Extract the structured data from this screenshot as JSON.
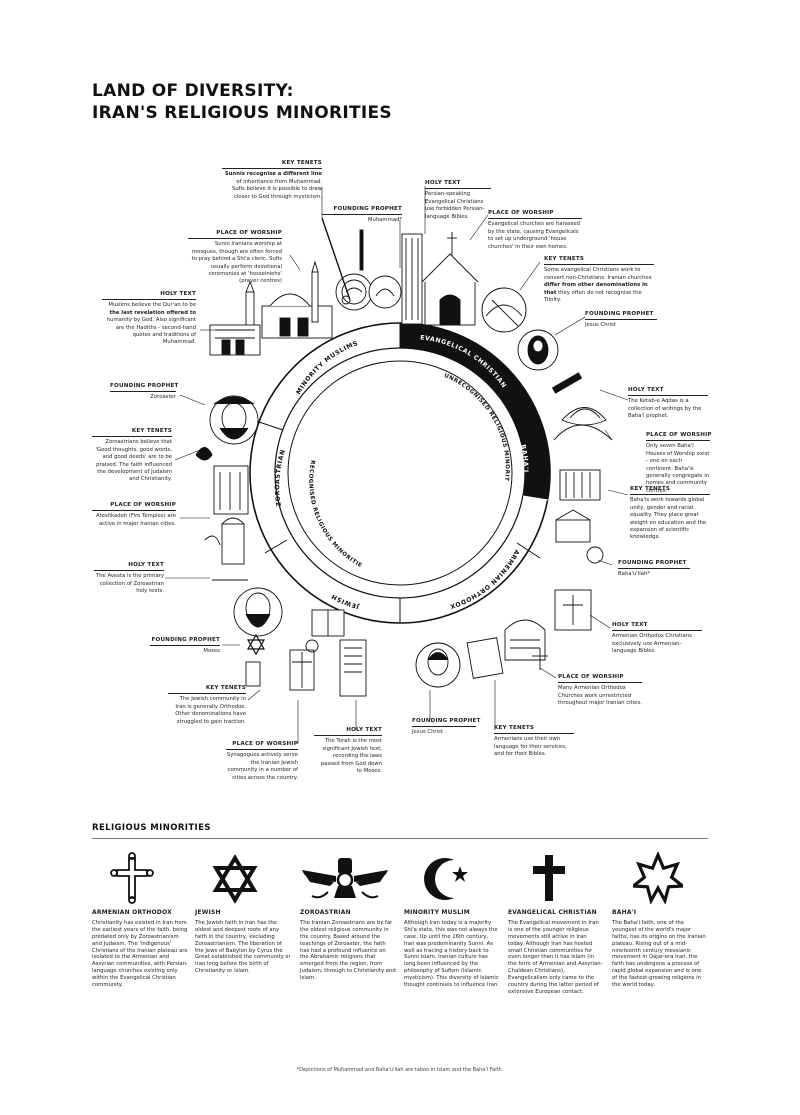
{
  "title": {
    "line1": "LAND OF DIVERSITY:",
    "line2": "IRAN'S RELIGIOUS MINORITIES"
  },
  "ring": {
    "outer_labels": [
      "MINORITY MUSLIMS",
      "EVANGELICAL CHRISTIAN",
      "BAHA'I",
      "ARMENIAN ORTHODOX",
      "JEWISH",
      "ZOROASTRIAN"
    ],
    "inner_left": "RECOGNISED RELIGIOUS MINORITIES",
    "inner_right": "UNRECOGNISED RELIGIOUS MINORITIES"
  },
  "callouts": {
    "muslim_key_tenets": {
      "heading": "KEY TENETS",
      "bold": "Sunnis recognise a different line",
      "text": "of inheritance from Muhammad. Sufis believe it is possible to draw closer to God through mysticism."
    },
    "muslim_founding_prophet": {
      "heading": "FOUNDING PROPHET",
      "text": "Muhammad*"
    },
    "muslim_place_of_worship": {
      "heading": "PLACE OF WORSHIP",
      "text": "Sunni Iranians worship at mosques, though are often forced to pray behind a Shi'a cleric. Sufis usually perform devotional ceremonies at 'hosseiniehs' (prayer centres)"
    },
    "muslim_holy_text": {
      "heading": "HOLY TEXT",
      "pre": "Muslims believe the Qur'an to be",
      "bold": "the last revelation offered to",
      "post": "humanity by God. Also significant are the Hadiths - second-hand quotes and traditions of Muhammad."
    },
    "zoro_founding_prophet": {
      "heading": "FOUNDING PROPHET",
      "text": "Zoroaster"
    },
    "zoro_key_tenets": {
      "heading": "KEY TENETS",
      "text": "Zoroastrians believe that 'Good thoughts, good words, and good deeds' are to be praised. The faith influenced the development of Judaism and Christianity."
    },
    "zoro_place_of_worship": {
      "heading": "PLACE OF WORSHIP",
      "text": "Ateshkadeh (Fire Temples) are active in major Iranian cities."
    },
    "zoro_holy_text": {
      "heading": "HOLY TEXT",
      "text": "The Avesta is the primary collection of Zoroastrian holy texts."
    },
    "jew_founding_prophet": {
      "heading": "FOUNDING PROPHET",
      "text": "Moses"
    },
    "jew_key_tenets": {
      "heading": "KEY TENETS",
      "text": "The Jewish community in Iran is generally Orthodox. Other denominations have struggled to gain traction."
    },
    "jew_place_of_worship": {
      "heading": "PLACE OF WORSHIP",
      "text": "Synagogues actively serve the Iranian Jewish community in a number of cities across the country."
    },
    "jew_holy_text": {
      "heading": "HOLY TEXT",
      "text": "The Torah is the most significant Jewish text, recording the laws passed from God down to Moses."
    },
    "arm_founding_prophet": {
      "heading": "FOUNDING PROPHET",
      "text": "Jesus Christ"
    },
    "arm_key_tenets": {
      "heading": "KEY TENETS",
      "text": "Armenians use their own language for their services, and for their Bibles."
    },
    "arm_place_of_worship": {
      "heading": "PLACE OF WORSHIP",
      "text": "Many Armenian Orthodox Churches work unrestricted throughout major Iranian cities."
    },
    "arm_holy_text": {
      "heading": "HOLY TEXT",
      "text": "Armenian Orthodox Christians exclusively use Armenian-language Bibles."
    },
    "bahai_founding_prophet": {
      "heading": "FOUNDING PROPHET",
      "text": "Baha'u'llah*"
    },
    "bahai_key_tenets": {
      "heading": "KEY TENETS",
      "text": "Baha'is work towards global unity, gender and racial equality. They place great weight on education and the expansion of scientific knowledge."
    },
    "bahai_place_of_worship": {
      "heading": "PLACE OF WORSHIP",
      "text": "Only seven Baha'i Houses of Worship exist - one on each continent. Baha'is generally congregate in homes and community centres."
    },
    "bahai_holy_text": {
      "heading": "HOLY TEXT",
      "text": "The Ketab-e Aqdas is a collection of writings by the Baha'i prophet."
    },
    "evan_founding_prophet": {
      "heading": "FOUNDING PROPHET",
      "text": "Jesus Christ"
    },
    "evan_key_tenets": {
      "heading": "KEY TENETS",
      "pre": "Some evangelical Christians work to convert non-Christians. Iranian churches",
      "bold": "differ from other denominations in that",
      "post": "they often do not recognise the Trinity."
    },
    "evan_place_of_worship": {
      "heading": "PLACE OF WORSHIP",
      "text": "Evangelical churches are harassed by the state, causing Evangelicals to set up underground 'house churches' in their own homes."
    },
    "evan_holy_text": {
      "heading": "HOLY TEXT",
      "text": "Persian-speaking Evangelical Christians use forbidden Persian-language Bibles."
    }
  },
  "section": {
    "title": "RELIGIOUS MINORITIES"
  },
  "minorities": [
    {
      "name": "ARMENIAN ORTHODOX",
      "icon": "cross-bottony-icon",
      "text": "Christianity has existed in Iran from the earliest years of the faith, being predated only by Zoroastrianism and Judaism. The 'indigenous' Christians of the Iranian plateau are isolated to the Armenian and Assyrian communities, with Persian-language churches existing only within the Evangelical Christian community."
    },
    {
      "name": "JEWISH",
      "icon": "star-of-david-icon",
      "text": "The Jewish faith in Iran has the oldest and deepest roots of any faith in the country, excluding Zoroastrianism. The liberation of the Jews of Babylon by Cyrus the Great established the community in Iran long before the birth of Christianity or Islam."
    },
    {
      "name": "ZOROASTRIAN",
      "icon": "faravahar-icon",
      "text": "The Iranian Zoroastrians are by far the oldest religious community in the country. Based around the teachings of Zoroaster, the faith has had a profound influence on the Abrahamic religions that emerged from the region, from Judaism, through to Christianity and Islam."
    },
    {
      "name": "MINORITY MUSLIM",
      "icon": "crescent-star-icon",
      "text": "Although Iran today is a majority Shi'a state, this was not always the case. Up until the 16th century, Iran was predominantly Sunni. As well as tracing a history back to Sunni Islam, Iranian culture has long been influenced by the philosophy of Sufism (Islamic mysticism). This diversity of Islamic thought continues to influence Iran."
    },
    {
      "name": "EVANGELICAL CHRISTIAN",
      "icon": "latin-cross-icon",
      "text": "The Evangelical movement in Iran is one of the younger religious movements still active in Iran today. Although Iran has hosted small Christian communities for even longer than it has Islam (in the form of Armenian and Assyrian-Chaldean Christians), Evangelicalism only came to the country during the latter period of extensive European contact."
    },
    {
      "name": "BAHA'I",
      "icon": "nine-pointed-star-icon",
      "text": "The Baha'i faith, one of the youngest of the world's major faiths, has its origins on the Iranian plateau. Rising out of a mid-nineteenth century messianic movement in Qajar-era Iran, the faith has undergone a process of rapid global expansion and is one of the fastest-growing religions in the world today."
    }
  ],
  "footnote": "*Depictions of Muhammad and Baha'u'llah are taboo in Islam and the Baha'i Faith."
}
